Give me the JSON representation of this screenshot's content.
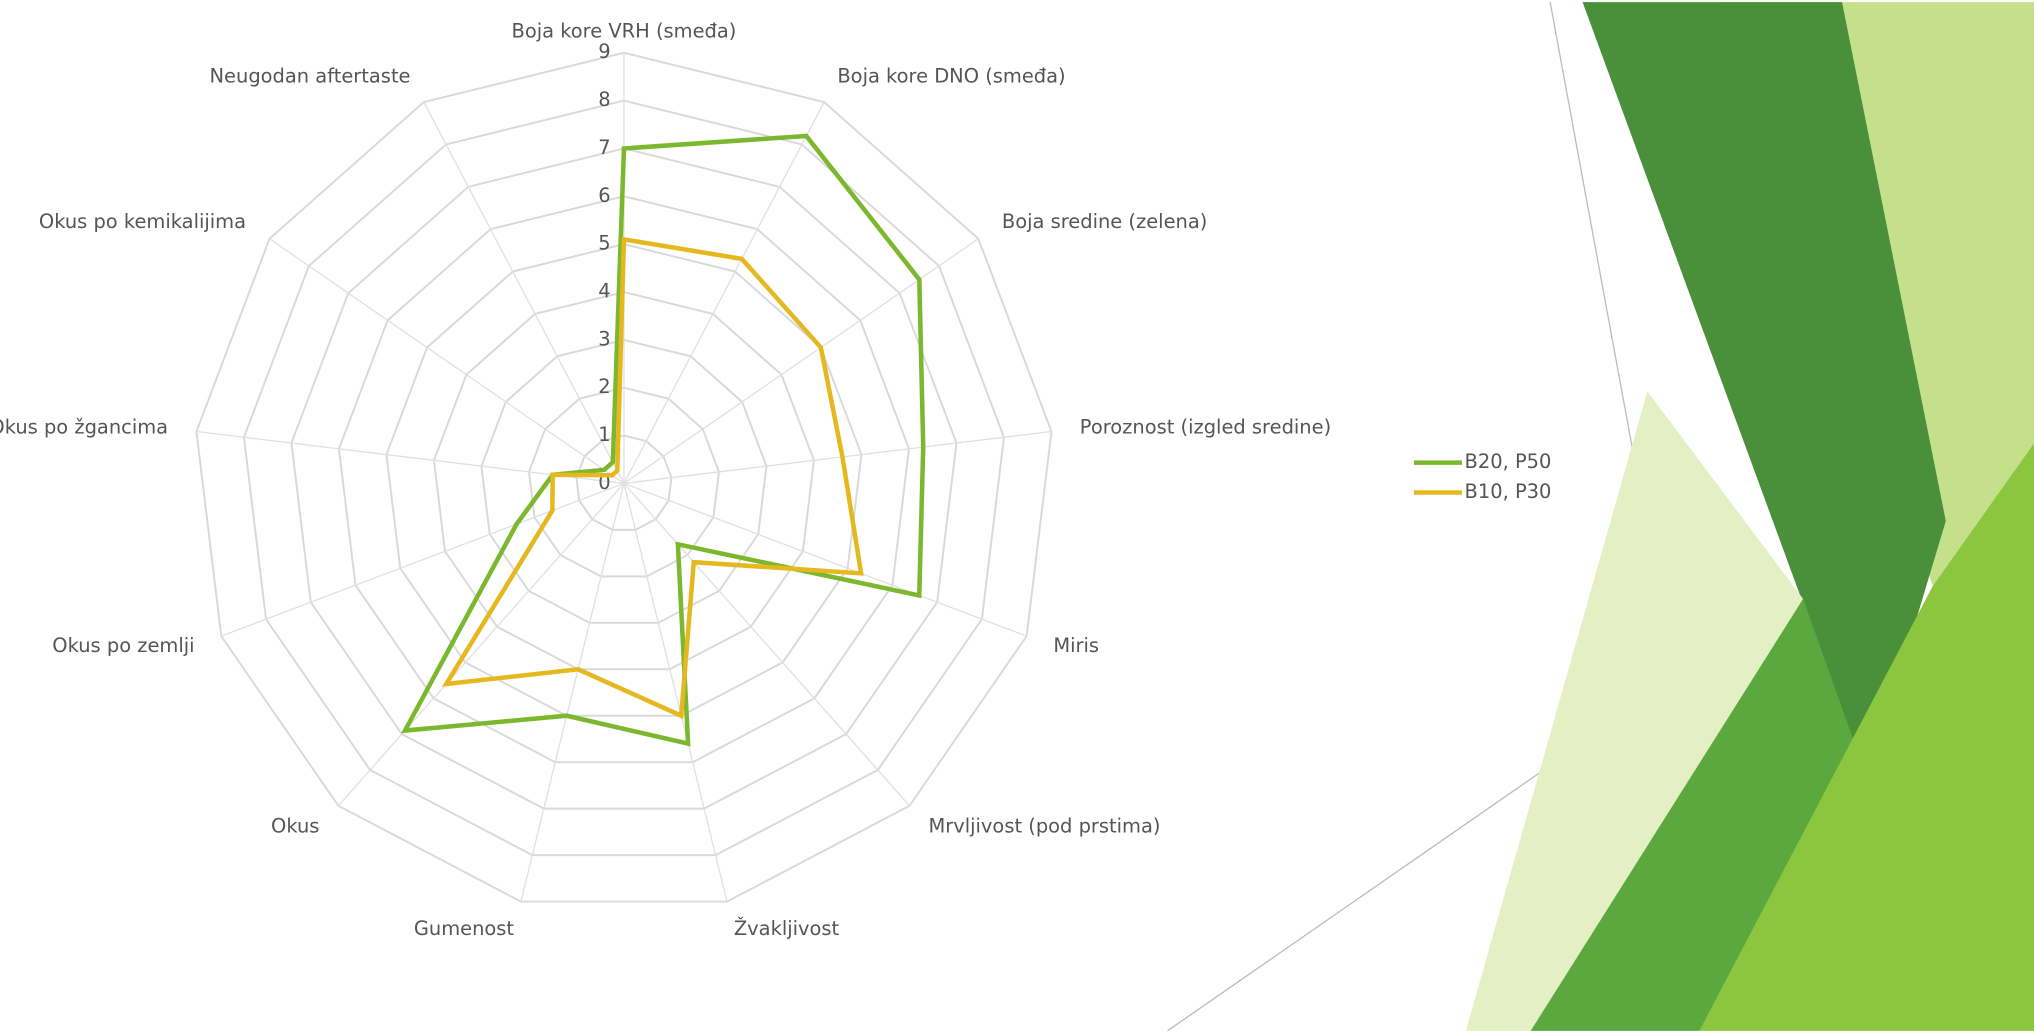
{
  "chart_data": {
    "type": "radar",
    "categories": [
      "Boja kore VRH (smeđa)",
      "Boja kore DNO (smeđa)",
      "Boja sredine (zelena)",
      "Poroznost (izgled sredine)",
      "Miris",
      "Mrvljivost (pod prstima)",
      "Žvakljivost",
      "Gumenost",
      "Okus",
      "Okus po zemlji",
      "Okus po žgancima",
      "Okus po kemikalijima",
      "Neugodan aftertaste"
    ],
    "series": [
      {
        "name": "B20, P50",
        "color": "#7cb82f",
        "values": [
          7.0,
          8.2,
          7.5,
          6.3,
          6.6,
          1.7,
          5.6,
          5.0,
          6.9,
          2.4,
          1.5,
          0.5,
          0.5
        ]
      },
      {
        "name": "B10, P30",
        "color": "#e6b820",
        "values": [
          5.1,
          5.3,
          5.0,
          4.6,
          5.3,
          2.2,
          5.0,
          4.0,
          5.6,
          1.6,
          1.5,
          0.3,
          0.3
        ]
      }
    ],
    "ylim": [
      0,
      9
    ],
    "yticks": [
      0,
      1,
      2,
      3,
      4,
      5,
      6,
      7,
      8,
      9
    ],
    "grid": true,
    "legend": "right"
  }
}
